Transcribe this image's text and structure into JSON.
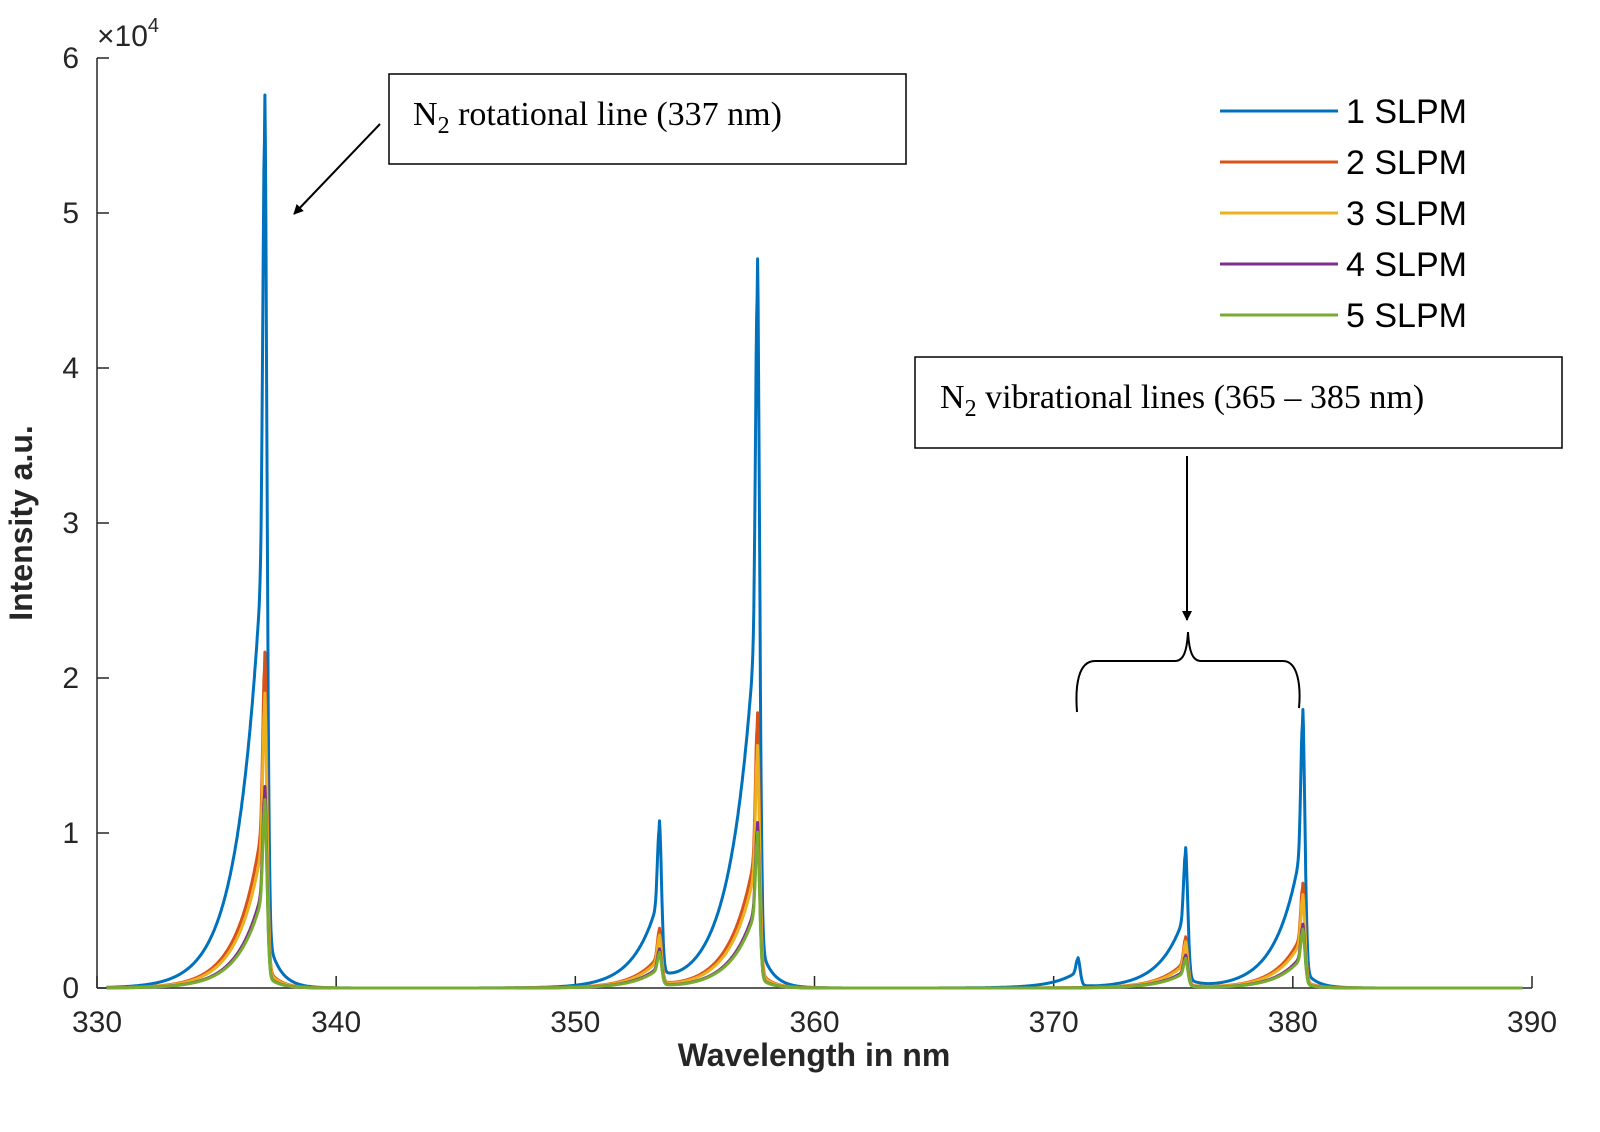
{
  "chart_data": {
    "type": "line",
    "xlabel": "Wavelength in nm",
    "ylabel": "Intensity a.u.",
    "xlim": [
      330,
      390
    ],
    "ylim": [
      0,
      60000
    ],
    "x_ticks": [
      "330",
      "340",
      "350",
      "360",
      "370",
      "380",
      "390"
    ],
    "y_ticks": [
      "0",
      "1",
      "2",
      "3",
      "4",
      "5",
      "6"
    ],
    "y_multiplier": {
      "base": "×10",
      "exponent": "4"
    },
    "legend_position": "top-right",
    "series": [
      {
        "name": "1 SLPM",
        "color": "#0072BD",
        "peaks": [
          {
            "x": 337.0,
            "y": 54500
          },
          {
            "x": 353.5,
            "y": 9800
          },
          {
            "x": 357.6,
            "y": 44500
          },
          {
            "x": 371.0,
            "y": 1800
          },
          {
            "x": 375.5,
            "y": 8500
          },
          {
            "x": 380.4,
            "y": 17000
          }
        ]
      },
      {
        "name": "2 SLPM",
        "color": "#D95319",
        "peaks": [
          {
            "x": 337.0,
            "y": 20500
          },
          {
            "x": 353.5,
            "y": 3500
          },
          {
            "x": 357.6,
            "y": 16800
          },
          {
            "x": 375.5,
            "y": 3100
          },
          {
            "x": 380.4,
            "y": 6400
          }
        ]
      },
      {
        "name": "3 SLPM",
        "color": "#EDB120",
        "peaks": [
          {
            "x": 337.0,
            "y": 18000
          },
          {
            "x": 353.5,
            "y": 3100
          },
          {
            "x": 357.6,
            "y": 14800
          },
          {
            "x": 375.5,
            "y": 2800
          },
          {
            "x": 380.4,
            "y": 5700
          }
        ]
      },
      {
        "name": "4 SLPM",
        "color": "#7E2F8E",
        "peaks": [
          {
            "x": 337.0,
            "y": 12300
          },
          {
            "x": 353.5,
            "y": 2300
          },
          {
            "x": 357.6,
            "y": 10100
          },
          {
            "x": 375.5,
            "y": 2000
          },
          {
            "x": 380.4,
            "y": 3900
          }
        ]
      },
      {
        "name": "5 SLPM",
        "color": "#77AC30",
        "peaks": [
          {
            "x": 337.0,
            "y": 11500
          },
          {
            "x": 353.5,
            "y": 2100
          },
          {
            "x": 357.6,
            "y": 9500
          },
          {
            "x": 375.5,
            "y": 1800
          },
          {
            "x": 380.4,
            "y": 3600
          }
        ]
      }
    ],
    "annotations": [
      {
        "main": "N",
        "sub": "2",
        "rest": " rotational line (337 nm)"
      },
      {
        "main": "N",
        "sub": "2",
        "rest": " vibrational lines (365 – 385 nm)"
      }
    ]
  }
}
